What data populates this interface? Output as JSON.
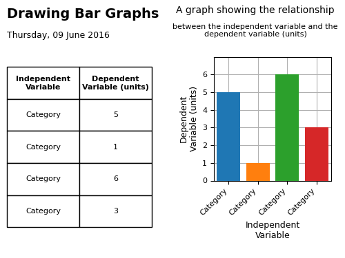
{
  "chart_data": {
    "type": "bar",
    "title": "A graph showing the relationship",
    "subtitle": "between the independent variable and the dependent variable (units)",
    "annotations": [
      "Drawing Bar Graphs",
      "Thursday, 09 June 2016"
    ],
    "categories": [
      "Category",
      "Category",
      "Category",
      "Category"
    ],
    "values": [
      5,
      1,
      6,
      3
    ],
    "colors": [
      "#1f77b4",
      "#ff7f0e",
      "#2ca02c",
      "#d62728"
    ],
    "xlabel": "Independent\nVariable",
    "ylabel": "Dependent\nVariable (units)",
    "ylim": [
      0,
      7
    ],
    "yticks": [
      0,
      1,
      2,
      3,
      4,
      5,
      6
    ],
    "grid": true,
    "table": {
      "columns": [
        "Independent\nVariable",
        "Dependent\nVariable (units)"
      ],
      "rows": [
        [
          "Category",
          "5"
        ],
        [
          "Category",
          "1"
        ],
        [
          "Category",
          "6"
        ],
        [
          "Category",
          "3"
        ]
      ]
    }
  }
}
